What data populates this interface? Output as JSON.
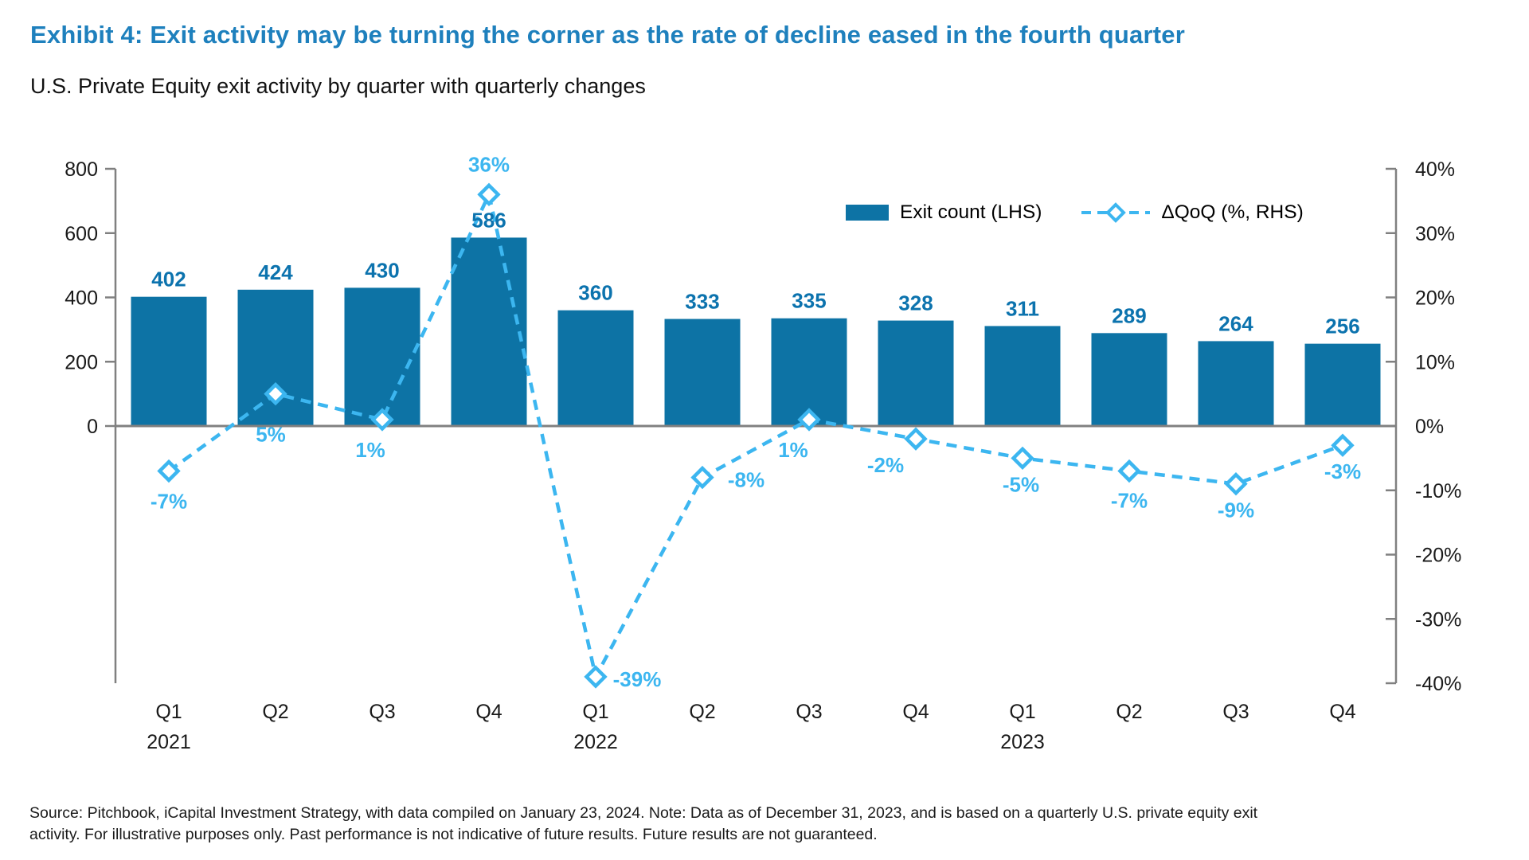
{
  "title": "Exhibit 4: Exit activity may be turning the corner as the rate of decline eased in the fourth quarter",
  "subtitle": "U.S. Private Equity exit activity by quarter with quarterly changes",
  "source_note": "Source: Pitchbook, iCapital Investment Strategy, with data compiled on January 23, 2024. Note: Data as of December 31, 2023, and is based on a quarterly U.S. private equity exit activity. For illustrative purposes only. Past performance is not indicative of future results. Future results are not guaranteed.",
  "legend": {
    "bar_label": "Exit count (LHS)",
    "line_label": "ΔQoQ (%, RHS)"
  },
  "colors": {
    "title_blue": "#1E80BD",
    "bar_blue": "#0D73A5",
    "bar_label_blue": "#0C73AE",
    "light_blue": "#3CB6F0",
    "axis_gray": "#808080",
    "text_dark": "#1a1a1a"
  },
  "chart_data": {
    "type": "combo bar+line",
    "grid": "off",
    "legend_position": "top-right",
    "categories": [
      "Q1",
      "Q2",
      "Q3",
      "Q4",
      "Q1",
      "Q2",
      "Q3",
      "Q4",
      "Q1",
      "Q2",
      "Q3",
      "Q4"
    ],
    "year_labels": [
      {
        "index": 0,
        "label": "2021"
      },
      {
        "index": 4,
        "label": "2022"
      },
      {
        "index": 8,
        "label": "2023"
      }
    ],
    "series": [
      {
        "name": "Exit count (LHS)",
        "type": "bar",
        "axis": "left",
        "values": [
          402,
          424,
          430,
          586,
          360,
          333,
          335,
          328,
          311,
          289,
          264,
          256
        ],
        "data_labels": [
          "402",
          "424",
          "430",
          "586",
          "360",
          "333",
          "335",
          "328",
          "311",
          "289",
          "264",
          "256"
        ]
      },
      {
        "name": "ΔQoQ (%, RHS)",
        "type": "line",
        "axis": "right",
        "line_style": "dashed",
        "marker": "open-diamond",
        "values": [
          -7,
          5,
          1,
          36,
          -39,
          -8,
          1,
          -2,
          -5,
          -7,
          -9,
          -3
        ],
        "data_labels": [
          "-7%",
          "5%",
          "1%",
          "36%",
          "-39%",
          "-8%",
          "1%",
          "-2%",
          "-5%",
          "-7%",
          "-9%",
          "-3%"
        ],
        "label_offsets": [
          [
            0,
            47
          ],
          [
            -6,
            60
          ],
          [
            -15,
            47
          ],
          [
            0,
            -29
          ],
          [
            52,
            12
          ],
          [
            55,
            12
          ],
          [
            -20,
            47
          ],
          [
            -38,
            42
          ],
          [
            -2,
            42
          ],
          [
            0,
            46
          ],
          [
            0,
            42
          ],
          [
            0,
            42
          ]
        ]
      }
    ],
    "left_axis": {
      "min": -800,
      "max": 800,
      "tick_labels": [
        {
          "v": 800,
          "t": "800"
        },
        {
          "v": 600,
          "t": "600"
        },
        {
          "v": 400,
          "t": "400"
        },
        {
          "v": 200,
          "t": "200"
        },
        {
          "v": 0,
          "t": "0"
        }
      ]
    },
    "right_axis": {
      "min": -40,
      "max": 40,
      "tick_labels": [
        {
          "v": 40,
          "t": "40%"
        },
        {
          "v": 30,
          "t": "30%"
        },
        {
          "v": 20,
          "t": "20%"
        },
        {
          "v": 10,
          "t": "10%"
        },
        {
          "v": 0,
          "t": "0%"
        },
        {
          "v": -10,
          "t": "-10%"
        },
        {
          "v": -20,
          "t": "-20%"
        },
        {
          "v": -30,
          "t": "-30%"
        },
        {
          "v": -40,
          "t": "-40%"
        }
      ]
    }
  }
}
